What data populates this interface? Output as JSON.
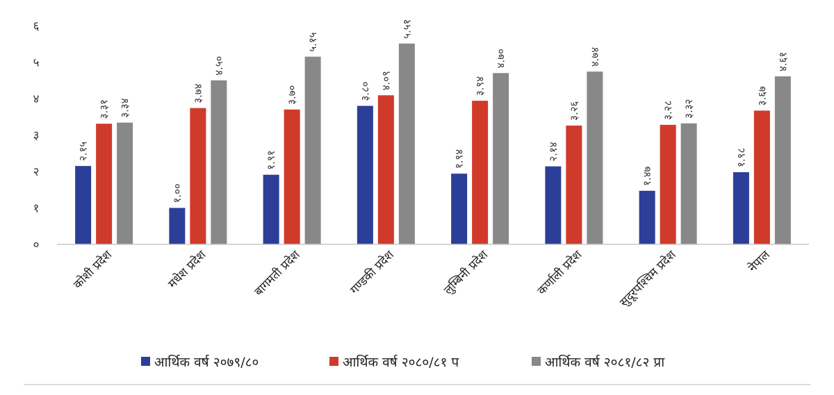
{
  "chart_data": {
    "type": "bar",
    "categories": [
      "कोशी प्रदेश",
      "मधेश प्रदेश",
      "बागमती प्रदेश",
      "गण्डकी प्रदेश",
      "लुम्बिनी प्रदेश",
      "कर्णाली प्रदेश",
      "सुदूरपश्चिम प्रदेश",
      "नेपाल"
    ],
    "series": [
      {
        "name": "आर्थिक वर्ष २०७९/८०",
        "color": "#2b3f98",
        "values": [
          2.15,
          1.0,
          1.91,
          3.8,
          1.94,
          2.14,
          1.47,
          1.98
        ],
        "labels": [
          "२.१५",
          "१.००",
          "१.९१",
          "३.८०",
          "१.९४",
          "२.१४",
          "१.४७",
          "१.९८"
        ]
      },
      {
        "name": "आर्थिक वर्ष २०८०/८१ प",
        "color": "#d03a2a",
        "values": [
          3.31,
          3.74,
          3.7,
          4.09,
          3.94,
          3.26,
          3.28,
          3.67
        ],
        "labels": [
          "३.३१",
          "३.७४",
          "३.७०",
          "४.०९",
          "३.९४",
          "३.२६",
          "३.२८",
          "३.६७"
        ]
      },
      {
        "name": "आर्थिक वर्ष २०८१/८२ प्रा",
        "color": "#888888",
        "values": [
          3.34,
          4.5,
          5.15,
          5.51,
          4.7,
          4.74,
          3.32,
          4.61
        ],
        "labels": [
          "३.३४",
          "४.५०",
          "५.१५",
          "५.५१",
          "४.७०",
          "४.७४",
          "३.३२",
          "४.६१"
        ]
      }
    ],
    "ylim": [
      0,
      6
    ],
    "yticks": [
      0,
      1,
      2,
      3,
      4,
      5,
      6
    ],
    "ytick_labels": [
      "०",
      "१",
      "२",
      "३",
      "४",
      "५",
      "६"
    ],
    "grid": false,
    "legend_position": "bottom",
    "title": "",
    "xlabel": "",
    "ylabel": ""
  }
}
